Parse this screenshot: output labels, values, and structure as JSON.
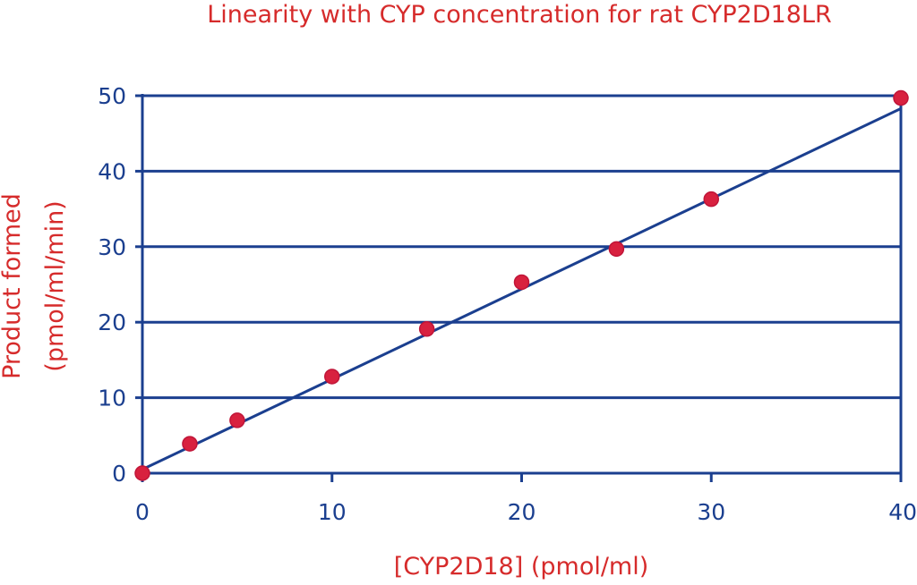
{
  "chart_data": {
    "type": "scatter",
    "title": "Linearity with CYP concentration for rat CYP2D18LR",
    "xlabel": "[CYP2D18] (pmol/ml)",
    "ylabel_lines": [
      "Product formed",
      "(pmol/ml/min)"
    ],
    "xlim": [
      0,
      40
    ],
    "ylim": [
      0,
      50
    ],
    "x_ticks": [
      0,
      10,
      20,
      30,
      40
    ],
    "y_ticks": [
      0,
      10,
      20,
      30,
      40,
      50
    ],
    "grid": "horizontal",
    "legend": "none",
    "series": [
      {
        "x": [
          0,
          2.5,
          5,
          10,
          15,
          20,
          25,
          30,
          40
        ],
        "y": [
          0,
          3.9,
          7,
          12.8,
          19.1,
          25.3,
          29.7,
          36.3,
          49.7
        ]
      }
    ],
    "trendline": {
      "type": "linear",
      "x": [
        0,
        40
      ],
      "y": [
        0.5,
        48.3
      ]
    },
    "colors": {
      "axis": "#1b3f8f",
      "points": "#d8213f",
      "points_edge": "#c01538",
      "text": "#d62b2b"
    }
  }
}
